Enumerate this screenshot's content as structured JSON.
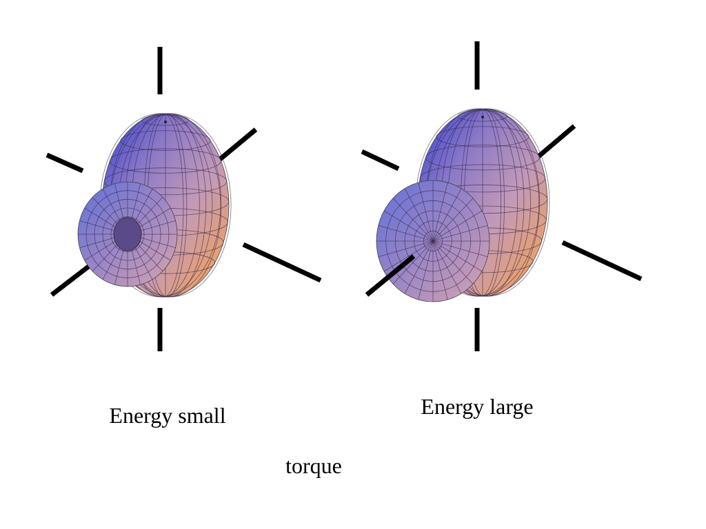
{
  "panels": [
    {
      "label": "Energy small"
    },
    {
      "label": "Energy large"
    }
  ],
  "caption": "torque"
}
